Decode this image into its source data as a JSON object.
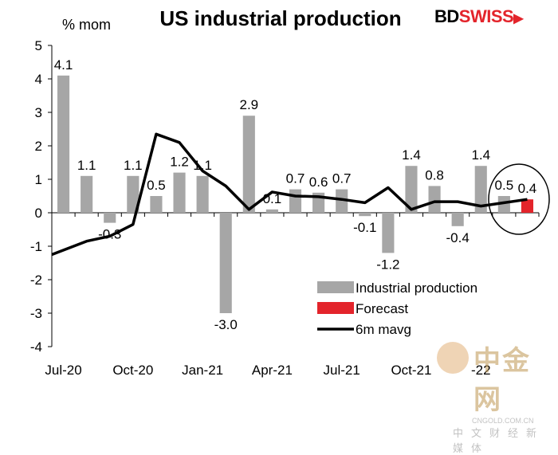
{
  "brand": {
    "prefix": "BD",
    "name": "SWISS",
    "arrow": "▶"
  },
  "watermark": {
    "big": "中金网",
    "url": "CNGOLD.COM.CN",
    "tagline": "中文财经新媒体"
  },
  "chart_data": {
    "type": "bar",
    "title": "US industrial production",
    "ylabel": "% mom",
    "xlabel": "",
    "ylim": [
      -4,
      5
    ],
    "yticks": [
      -4,
      -3,
      -2,
      -1,
      0,
      1,
      2,
      3,
      4,
      5
    ],
    "grid": false,
    "legend_position": "bottom-right",
    "x_tick_labels": [
      "Jul-20",
      "Oct-20",
      "Jan-21",
      "Apr-21",
      "Jul-21",
      "Oct-21",
      "-22"
    ],
    "x_tick_index": [
      0,
      3,
      6,
      9,
      12,
      15,
      18
    ],
    "n_periods": 21,
    "series": [
      {
        "name": "Industrial production",
        "kind": "bar",
        "color": "#a6a6a6",
        "values": [
          4.1,
          1.1,
          -0.3,
          1.1,
          0.5,
          1.2,
          1.1,
          -3.0,
          2.9,
          0.1,
          0.7,
          0.6,
          0.7,
          -0.1,
          -1.2,
          1.4,
          0.8,
          -0.4,
          1.4,
          0.5,
          null
        ],
        "labels": [
          "4.1",
          "1.1",
          "-0.3",
          "1.1",
          "0.5",
          "1.2",
          "1.1",
          "-3.0",
          "2.9",
          "0.1",
          "0.7",
          "0.6",
          "0.7",
          "-0.1",
          "-1.2",
          "1.4",
          "0.8",
          "-0.4",
          "1.4",
          "0.5",
          null
        ]
      },
      {
        "name": "Forecast",
        "kind": "bar",
        "color": "#e3242b",
        "values": [
          null,
          null,
          null,
          null,
          null,
          null,
          null,
          null,
          null,
          null,
          null,
          null,
          null,
          null,
          null,
          null,
          null,
          null,
          null,
          null,
          0.4
        ],
        "labels": [
          null,
          null,
          null,
          null,
          null,
          null,
          null,
          null,
          null,
          null,
          null,
          null,
          null,
          null,
          null,
          null,
          null,
          null,
          null,
          null,
          "0.4"
        ]
      },
      {
        "name": "6m mavg",
        "kind": "line",
        "color": "#000000",
        "values": [
          -1.25,
          -0.85,
          -0.7,
          -0.35,
          2.35,
          2.1,
          1.25,
          0.8,
          0.1,
          0.62,
          0.5,
          0.48,
          0.4,
          0.3,
          0.75,
          0.1,
          0.33,
          0.33,
          0.2,
          0.3,
          0.4
        ]
      }
    ],
    "annotation": "circle around forecast"
  }
}
